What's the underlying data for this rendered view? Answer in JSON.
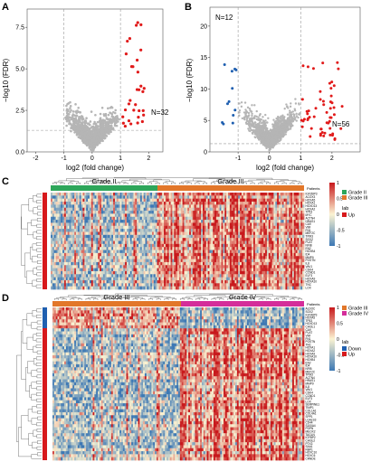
{
  "panels": {
    "A": {
      "label": "A",
      "chart_data": {
        "type": "scatter",
        "title": "",
        "xlabel": "log2 (fold change)",
        "ylabel": "−log10 (FDR)",
        "xlim": [
          -2.3,
          2.5
        ],
        "ylim": [
          0,
          8.6
        ],
        "x_ticks": [
          "-2",
          "-1",
          "0",
          "1",
          "2"
        ],
        "x_tick_values": [
          -2,
          -1,
          0,
          1,
          2
        ],
        "y_ticks": [
          "0.0",
          "2.5",
          "5.0",
          "7.5"
        ],
        "y_tick_values": [
          0,
          2.5,
          5.0,
          7.5
        ],
        "thresholds": {
          "x": [
            -1,
            1
          ],
          "y": 1.3
        },
        "annotation": "N=32",
        "colors": {
          "ns": "#b5b5b5",
          "up": "#e11a1a"
        }
      }
    },
    "B": {
      "label": "B",
      "chart_data": {
        "type": "scatter",
        "title": "",
        "xlabel": "log2 (fold change)",
        "ylabel": "−log10 (FDR)",
        "xlim": [
          -1.9,
          2.9
        ],
        "ylim": [
          0,
          23
        ],
        "x_ticks": [
          "-1",
          "0",
          "1",
          "2"
        ],
        "x_tick_values": [
          -1,
          0,
          1,
          2
        ],
        "y_ticks": [
          "0",
          "5",
          "10",
          "15",
          "20"
        ],
        "y_tick_values": [
          0,
          5,
          10,
          15,
          20
        ],
        "thresholds": {
          "x": [
            -1,
            1
          ],
          "y": 1.3
        },
        "annotations": [
          "N=12",
          "N=56"
        ],
        "colors": {
          "ns": "#b5b5b5",
          "up": "#e11a1a",
          "down": "#1f5fb0"
        }
      }
    },
    "C": {
      "label": "C",
      "chart_data": {
        "type": "heatmap",
        "groups": [
          "Grade II",
          "Grade III"
        ],
        "annotation_title": "Patients",
        "legend": {
          "scale_ticks": [
            "1",
            "0.5",
            "0",
            "-0.5",
            "-1"
          ],
          "patients_entries": [
            "Grade II",
            "Grade III"
          ],
          "lab_title": "lab",
          "lab_entries": [
            "Up"
          ]
        },
        "row_labels": [
          "IGF2BP3",
          "ACOX3",
          "HOXA5",
          "HOXA1",
          "HOXD13",
          "HOXA2",
          "TP53",
          "MYC",
          "ACTN4",
          "HRAS1",
          "CA9",
          "VIM",
          "FN1",
          "MEF2C",
          "TPM3",
          "SOX2",
          "PLAT",
          "NFIB",
          "EN2",
          "HOXB4",
          "ID4",
          "MMP9",
          "POSTN",
          "IL8",
          "VAV1",
          "CDK4",
          "CCND1",
          "ELF3",
          "HOXA9",
          "HOXA10",
          "TNC",
          "LOX"
        ],
        "colors": {
          "grade_ii": "#2ea65a",
          "grade_iii": "#e2772a",
          "up": "#d7191c",
          "high": "#c8191c",
          "mid": "#fbf3d2",
          "low": "#3d78b4"
        }
      }
    },
    "D": {
      "label": "D",
      "chart_data": {
        "type": "heatmap",
        "groups": [
          "Grade III",
          "Grade IV"
        ],
        "annotation_title": "Patients",
        "legend": {
          "scale_ticks": [
            "1",
            "0.5",
            "0",
            "-0.5",
            "-1"
          ],
          "patients_entries": [
            "Grade III",
            "Grade IV"
          ],
          "lab_title": "lab",
          "lab_entries": [
            "Down",
            "Up"
          ]
        },
        "row_labels": [
          "ALDOC",
          "SOX2",
          "IGF2BP3",
          "HOXA5",
          "TP53",
          "HOXD13",
          "CHI3L1",
          "CA9",
          "PLAT",
          "VIM",
          "FN1",
          "POSTN",
          "TNC",
          "HOXA1",
          "HOXA2",
          "HOXA9",
          "HOXA10",
          "HOXB4",
          "EN2",
          "ID4",
          "NFIB",
          "MEF2C",
          "TPM3",
          "ACTN4",
          "HRAS1",
          "MMP9",
          "IL8",
          "VAV1",
          "CDK4",
          "CCND1",
          "ELF3",
          "LOX",
          "SERPINE1",
          "TIMP1",
          "COL1A1",
          "COL4A1",
          "SPP1",
          "LGALS3",
          "CD44",
          "S100A4",
          "PDPN",
          "MEOX2",
          "TAGLN",
          "IGFBP2",
          "CHI3L2",
          "PTX3",
          "SAA1",
          "RBP1",
          "HOXC10",
          "HOXC6",
          "CRNDE"
        ],
        "colors": {
          "grade_iii": "#e2772a",
          "grade_iv": "#d42d9a",
          "down": "#1f5fb0",
          "up": "#d7191c",
          "high": "#c8191c",
          "mid": "#fbf3d2",
          "low": "#3d78b4"
        }
      }
    }
  }
}
